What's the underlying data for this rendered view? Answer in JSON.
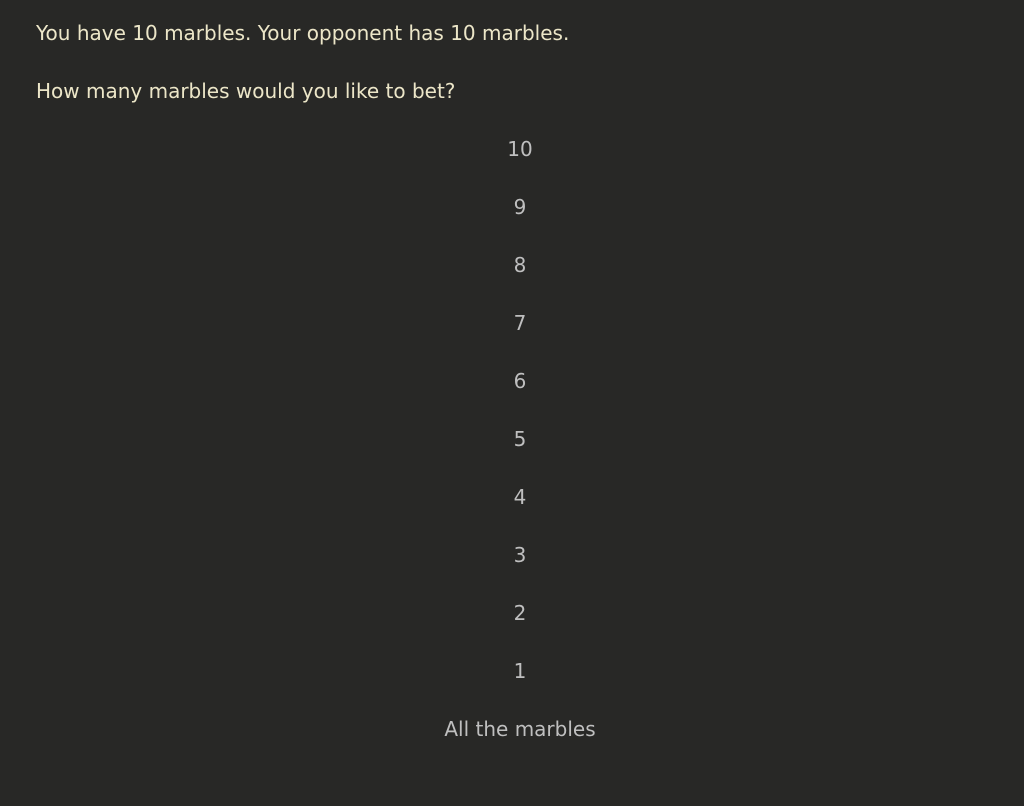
{
  "colors": {
    "background": "#282826",
    "prompt_text": "#ece6c8",
    "option_text": "#bfbfbf"
  },
  "header": {
    "line1": "You have 10 marbles. Your opponent has 10 marbles.",
    "line2": "How many marbles would you like to bet?"
  },
  "game_state": {
    "player_marbles": 10,
    "opponent_marbles": 10
  },
  "options": {
    "items": [
      "10",
      "9",
      "8",
      "7",
      "6",
      "5",
      "4",
      "3",
      "2",
      "1",
      "All the marbles"
    ]
  }
}
